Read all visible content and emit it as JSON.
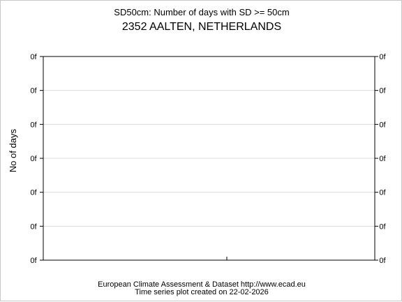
{
  "chart_data": {
    "type": "line",
    "title": "SD50cm: Number of days with SD >= 50cm",
    "subtitle": "2352 AALTEN, NETHERLANDS",
    "xlabel": "",
    "ylabel": "No of days",
    "y_tick_labels": [
      "0f",
      "0f",
      "0f",
      "0f",
      "0f",
      "0f",
      "0f"
    ],
    "series": [],
    "grid": true
  },
  "footer": {
    "line1": "European Climate Assessment & Dataset  http://www.ecad.eu",
    "line2": "Time series plot created on 22-02-2026"
  }
}
